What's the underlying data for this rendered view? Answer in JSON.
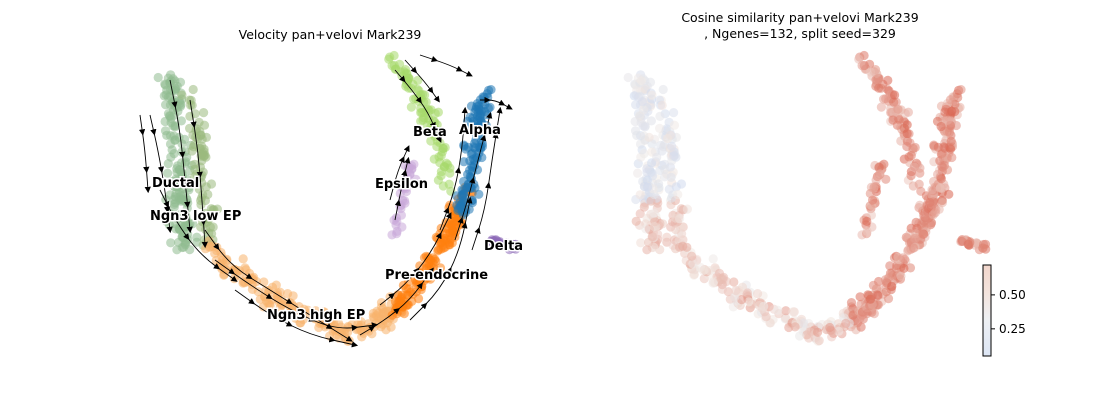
{
  "chart_data": [
    {
      "type": "scatter",
      "subtype": "umap-velocity-stream",
      "title": "Velocity pan+velovi Mark239",
      "axes_visible": false,
      "grid": false,
      "clusters": [
        {
          "name": "Ductal",
          "color": "#8fbc8f"
        },
        {
          "name": "Ngn3 low EP",
          "color": "#9aba7e"
        },
        {
          "name": "Ngn3 high EP",
          "color": "#f7b26b"
        },
        {
          "name": "Pre-endocrine",
          "color": "#ff7f0e"
        },
        {
          "name": "Beta",
          "color": "#a6d96a"
        },
        {
          "name": "Alpha",
          "color": "#1f77b4"
        },
        {
          "name": "Delta",
          "color": "#8e6bb8"
        },
        {
          "name": "Epsilon",
          "color": "#c8a8d8"
        }
      ]
    },
    {
      "type": "scatter",
      "subtype": "umap-colored",
      "title": "Cosine similarity pan+velovi Mark239",
      "subtitle": ", Ngenes=132, split seed=329",
      "axes_visible": false,
      "grid": false,
      "colorbar": {
        "colormap": "coolwarm",
        "range": [
          0.05,
          0.72
        ],
        "ticks": [
          0.25,
          0.5
        ],
        "tick_labels": [
          "0.25",
          "0.50"
        ]
      },
      "colors": {
        "low": "#c9d7f0",
        "mid": "#f2ebe6",
        "high": "#d9634f"
      }
    }
  ]
}
